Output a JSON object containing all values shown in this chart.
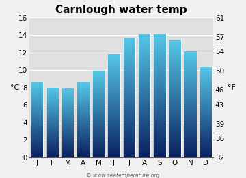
{
  "title": "Carnlough water temp",
  "months": [
    "J",
    "F",
    "M",
    "A",
    "M",
    "J",
    "J",
    "A",
    "S",
    "O",
    "N",
    "D"
  ],
  "values_c": [
    8.7,
    8.1,
    8.0,
    8.7,
    10.0,
    11.9,
    13.7,
    14.2,
    14.2,
    13.5,
    12.2,
    10.4
  ],
  "ylim_c": [
    0,
    16
  ],
  "yticks_c": [
    0,
    2,
    4,
    6,
    8,
    10,
    12,
    14,
    16
  ],
  "ylim_f": [
    32,
    61
  ],
  "yticks_f": [
    32,
    36,
    39,
    43,
    46,
    50,
    54,
    57,
    61
  ],
  "ylabel_left": "°C",
  "ylabel_right": "°F",
  "bar_color_top": "#55c8e8",
  "bar_color_bottom": "#0a2060",
  "bar_color_mid": "#2080b8",
  "background_color": "#e0e0e0",
  "fig_bg_color": "#f0f0f0",
  "watermark": "© www.seatemperature.org",
  "title_fontsize": 11,
  "tick_fontsize": 7.5,
  "label_fontsize": 8
}
